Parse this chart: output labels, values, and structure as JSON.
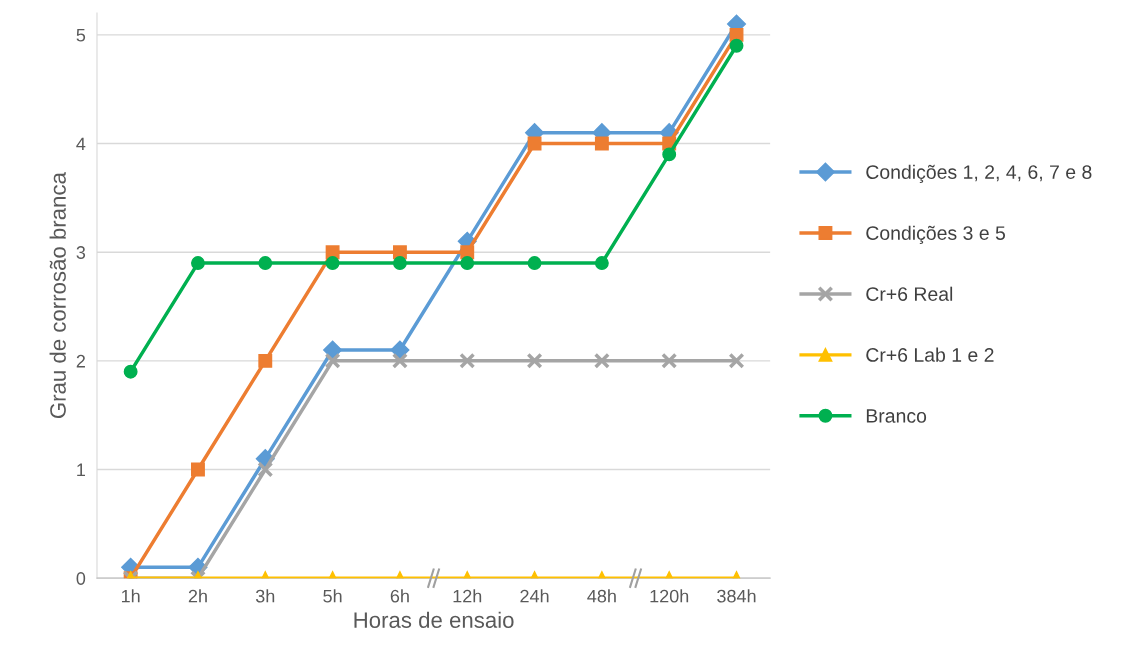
{
  "chart_data": {
    "type": "line",
    "xlabel": "Horas de ensaio",
    "ylabel": "Grau de corrosão branca",
    "categories": [
      "1h",
      "2h",
      "3h",
      "5h",
      "6h",
      "12h",
      "24h",
      "48h",
      "120h",
      "384h"
    ],
    "ylim": [
      0,
      5.2
    ],
    "yticks": [
      0,
      1,
      2,
      3,
      4,
      5
    ],
    "grid": "y",
    "legend": "right",
    "line_style": "solid",
    "series": [
      {
        "name": "Condições 1, 2, 4, 6, 7 e 8",
        "color": "#5b9bd5",
        "marker": "diamond",
        "values": [
          0.1,
          0.1,
          1.1,
          2.1,
          2.1,
          3.1,
          4.1,
          4.1,
          4.1,
          5.1
        ]
      },
      {
        "name": "Condições 3 e 5",
        "color": "#ed7d31",
        "marker": "square",
        "values": [
          0,
          1,
          2,
          3,
          3,
          3,
          4,
          4,
          4,
          5
        ]
      },
      {
        "name": "Cr+6 Real",
        "color": "#a5a5a5",
        "marker": "cross",
        "values": [
          0,
          0,
          1,
          2,
          2,
          2,
          2,
          2,
          2,
          2
        ]
      },
      {
        "name": "Cr+6 Lab 1 e 2",
        "color": "#ffc000",
        "marker": "triangle",
        "values": [
          0,
          0,
          0,
          0,
          0,
          0,
          0,
          0,
          0,
          0
        ]
      },
      {
        "name": "Branco",
        "color": "#00b050",
        "marker": "circle",
        "values": [
          1.9,
          2.9,
          2.9,
          2.9,
          2.9,
          2.9,
          2.9,
          2.9,
          3.9,
          4.9
        ]
      }
    ]
  }
}
